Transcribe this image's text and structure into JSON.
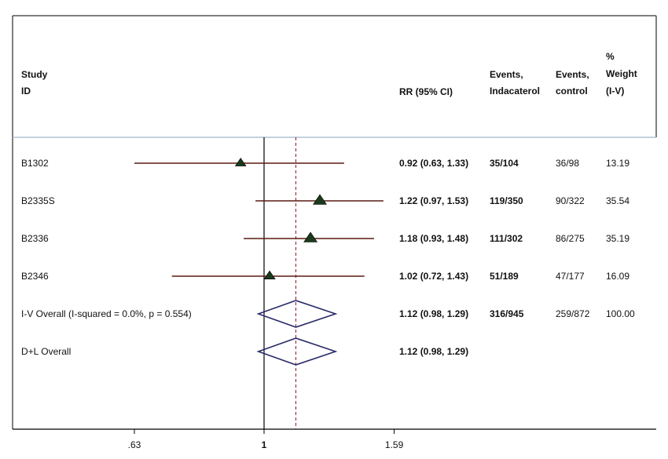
{
  "header": {
    "study_line1": "Study",
    "study_line2": "ID",
    "rr": "RR (95% CI)",
    "events_ind_line1": "Events,",
    "events_ind_line2": "Indacaterol",
    "events_ctl_line1": "Events,",
    "events_ctl_line2": "control",
    "weight_line1": "%",
    "weight_line2": "Weight",
    "weight_line3": "(I-V)"
  },
  "chart_data": {
    "type": "forest",
    "x_scale": "log",
    "xlim": [
      0.5,
      2.5
    ],
    "null_line": 1,
    "overall_line": 1.12,
    "x_ticks": [
      {
        "value": 0.63,
        "label": ".63"
      },
      {
        "value": 1,
        "label": "1"
      },
      {
        "value": 1.59,
        "label": "1.59"
      }
    ],
    "colors": {
      "ci_line": "#5a1a14",
      "marker": "#1b3a1b",
      "diamond": "#2a2a6a",
      "ref_line": "#8b1a2a",
      "divider": "#9fb3c8"
    },
    "studies": [
      {
        "id": "B1302",
        "rr": 0.92,
        "lo": 0.63,
        "hi": 1.33,
        "rr_text": "0.92 (0.63, 1.33)",
        "events_ind": "35/104",
        "events_ctl": "36/98",
        "weight": "13.19",
        "weight_value": 13.19
      },
      {
        "id": "B2335S",
        "rr": 1.22,
        "lo": 0.97,
        "hi": 1.53,
        "rr_text": "1.22 (0.97, 1.53)",
        "events_ind": "119/350",
        "events_ctl": "90/322",
        "weight": "35.54",
        "weight_value": 35.54
      },
      {
        "id": "B2336",
        "rr": 1.18,
        "lo": 0.93,
        "hi": 1.48,
        "rr_text": "1.18 (0.93, 1.48)",
        "events_ind": "111/302",
        "events_ctl": "86/275",
        "weight": "35.19",
        "weight_value": 35.19
      },
      {
        "id": "B2346",
        "rr": 1.02,
        "lo": 0.72,
        "hi": 1.43,
        "rr_text": "1.02 (0.72, 1.43)",
        "events_ind": "51/189",
        "events_ctl": "47/177",
        "weight": "16.09",
        "weight_value": 16.09
      }
    ],
    "overall": [
      {
        "id": "I-V Overall  (I-squared = 0.0%, p = 0.554)",
        "rr": 1.12,
        "lo": 0.98,
        "hi": 1.29,
        "rr_text": "1.12 (0.98, 1.29)",
        "events_ind": "316/945",
        "events_ctl": "259/872",
        "weight": "100.00"
      },
      {
        "id": "D+L Overall",
        "rr": 1.12,
        "lo": 0.98,
        "hi": 1.29,
        "rr_text": "1.12 (0.98, 1.29)",
        "events_ind": "",
        "events_ctl": "",
        "weight": ""
      }
    ]
  }
}
